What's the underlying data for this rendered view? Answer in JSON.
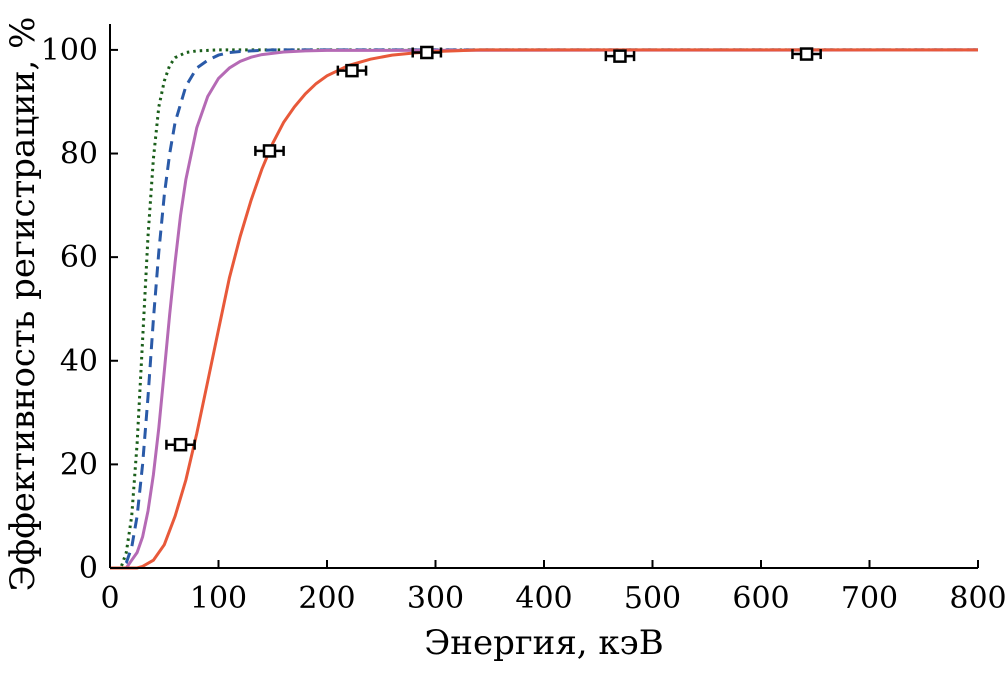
{
  "chart_data": {
    "type": "line",
    "title": "",
    "xlabel": "Энергия, кэВ",
    "ylabel": "Эффективность регистрации, %",
    "xlim": [
      0,
      800
    ],
    "ylim": [
      0,
      105
    ],
    "xticks": [
      0,
      100,
      200,
      300,
      400,
      500,
      600,
      700,
      800
    ],
    "yticks": [
      0,
      20,
      40,
      60,
      80,
      100
    ],
    "grid": false,
    "legend": "none",
    "series": [
      {
        "style": "dotted",
        "color": "#1a5e1a",
        "x": [
          0,
          10,
          15,
          20,
          25,
          30,
          35,
          40,
          45,
          50,
          55,
          60,
          70,
          80,
          90,
          100,
          800
        ],
        "values": [
          0,
          0,
          3,
          10,
          24,
          44,
          64,
          79,
          89,
          94,
          97,
          98.5,
          99.5,
          99.8,
          99.9,
          100,
          100
        ]
      },
      {
        "style": "dashed",
        "color": "#2a5aa8",
        "x": [
          0,
          10,
          15,
          20,
          25,
          30,
          35,
          40,
          45,
          50,
          55,
          60,
          70,
          80,
          90,
          100,
          110,
          120,
          130,
          140,
          150,
          800
        ],
        "values": [
          0,
          0,
          1,
          4,
          10,
          20,
          33,
          48,
          61,
          72,
          80,
          86,
          93,
          96.5,
          98,
          99,
          99.5,
          99.7,
          99.8,
          99.9,
          100,
          100
        ]
      },
      {
        "style": "solid",
        "color": "#b56ab5",
        "x": [
          0,
          15,
          20,
          25,
          30,
          35,
          40,
          45,
          50,
          55,
          60,
          65,
          70,
          80,
          90,
          100,
          110,
          120,
          130,
          140,
          160,
          180,
          200,
          800
        ],
        "values": [
          0,
          0,
          1.5,
          3,
          6,
          11,
          18,
          27,
          38,
          49,
          59,
          68,
          75,
          85,
          91,
          94.5,
          96.5,
          97.8,
          98.6,
          99.1,
          99.6,
          99.8,
          99.9,
          100
        ]
      },
      {
        "style": "solid",
        "color": "#e8593a",
        "x": [
          0,
          25,
          30,
          40,
          50,
          60,
          70,
          80,
          90,
          100,
          110,
          120,
          130,
          140,
          150,
          160,
          170,
          180,
          190,
          200,
          220,
          240,
          260,
          280,
          300,
          320,
          340,
          800
        ],
        "values": [
          0,
          0,
          0.3,
          1.5,
          4.5,
          10,
          17,
          26,
          36,
          46,
          56,
          64,
          71,
          77,
          82,
          86,
          89,
          91.5,
          93.5,
          95,
          97,
          98.2,
          99,
          99.4,
          99.7,
          99.85,
          100,
          100
        ]
      }
    ],
    "points": [
      {
        "x": 65,
        "y": 23.8,
        "xerr": 13
      },
      {
        "x": 147,
        "y": 80.5,
        "xerr": 13
      },
      {
        "x": 223,
        "y": 96,
        "xerr": 13
      },
      {
        "x": 292,
        "y": 99.5,
        "xerr": 13
      },
      {
        "x": 470,
        "y": 98.8,
        "xerr": 13
      },
      {
        "x": 642,
        "y": 99.2,
        "xerr": 13
      }
    ]
  }
}
